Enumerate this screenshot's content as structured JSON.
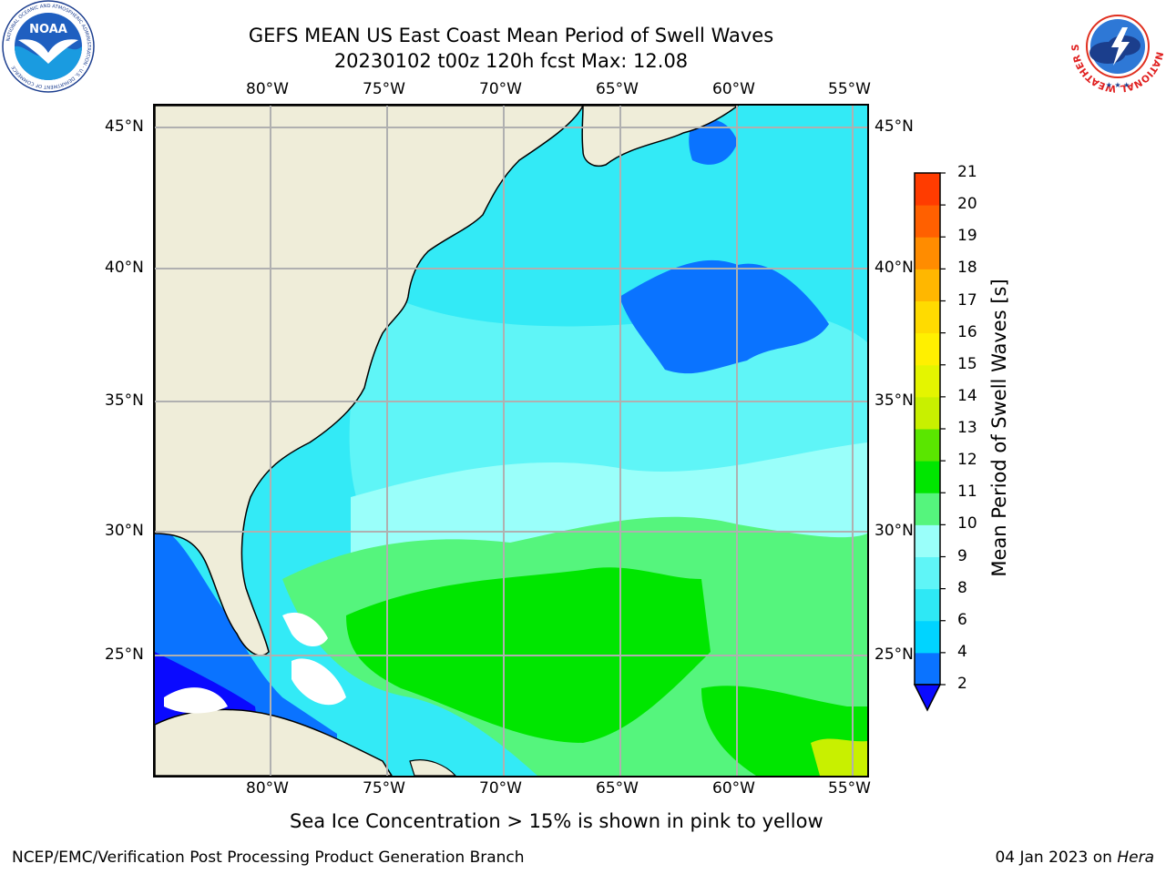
{
  "header": {
    "title_line1": "GEFS MEAN US East Coast Mean Period of Swell Waves",
    "title_line2": "20230102 t00z 120h fcst   Max: 12.08"
  },
  "logos": {
    "left": {
      "icon": "noaa-logo-icon",
      "text": "NOAA",
      "ring_text": "NATIONAL OCEANIC AND ATMOSPHERIC ADMINISTRATION · U.S. DEPARTMENT OF COMMERCE"
    },
    "right": {
      "icon": "nws-logo-icon",
      "ring_text": "NATIONAL WEATHER SERVICE"
    }
  },
  "map": {
    "lon_labels": [
      "80°W",
      "75°W",
      "70°W",
      "65°W",
      "60°W",
      "55°W"
    ],
    "lat_labels": [
      "45°N",
      "40°N",
      "35°N",
      "30°N",
      "25°N"
    ],
    "land_color": "#efedd9",
    "grid_color": "#b0b0b0"
  },
  "colorbar": {
    "title": "Mean Period of Swell Waves [s]",
    "labels": [
      "2",
      "4",
      "6",
      "8",
      "9",
      "10",
      "11",
      "12",
      "13",
      "14",
      "15",
      "16",
      "17",
      "18",
      "19",
      "20",
      "21"
    ],
    "colors": [
      "#0a73ff",
      "#00d4ff",
      "#2ee8f5",
      "#5ff5f7",
      "#9afffa",
      "#55f57d",
      "#00e600",
      "#5ae600",
      "#c8f000",
      "#e4f500",
      "#fff000",
      "#ffdb00",
      "#ffb700",
      "#ff8c00",
      "#ff6000",
      "#ff3c00",
      "#ff0000"
    ],
    "under_color": "#0a0aff"
  },
  "footer": {
    "note": "Sea Ice Concentration > 15% is shown in pink to yellow",
    "left": "NCEP/EMC/Verification Post Processing Product Generation Branch",
    "right_prefix": "04 Jan 2023 on",
    "right_host": "Hera"
  }
}
